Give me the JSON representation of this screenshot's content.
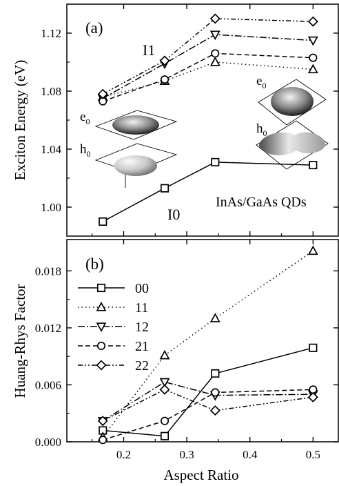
{
  "chart_data": [
    {
      "panel_label": "(a)",
      "type": "line",
      "ylabel": "Exciton Energy",
      "ylabel_unit": "(eV)",
      "ylim": [
        0.98,
        1.14
      ],
      "yticks": [
        "1.00",
        "1.04",
        "1.08",
        "1.12"
      ],
      "xlim": [
        0.11,
        0.54
      ],
      "annotations": {
        "group_upper": "I1",
        "group_lower": "I0",
        "material": "InAs/GaAs QDs",
        "e_label_left": "e",
        "e_sub_left": "0",
        "h_label_left": "h",
        "h_sub_left": "0",
        "e_label_right": "e",
        "e_sub_right": "0",
        "h_label_right": "h",
        "h_sub_right": "0"
      },
      "x": [
        0.167,
        0.265,
        0.345,
        0.5
      ],
      "series": [
        {
          "key": "00",
          "marker": "square",
          "dash": "",
          "values": [
            0.99,
            1.013,
            1.031,
            1.029
          ]
        },
        {
          "key": "11",
          "marker": "triangle-up",
          "dash": "1.5,4",
          "values": [
            1.076,
            1.087,
            1.1,
            1.095
          ]
        },
        {
          "key": "12",
          "marker": "triangle-down",
          "dash": "10,3,2,3",
          "values": [
            1.075,
            1.099,
            1.119,
            1.115
          ]
        },
        {
          "key": "21",
          "marker": "circle",
          "dash": "7,4",
          "values": [
            1.073,
            1.088,
            1.106,
            1.103
          ]
        },
        {
          "key": "22",
          "marker": "diamond",
          "dash": "7,3,2,3,2,3",
          "values": [
            1.078,
            1.101,
            1.13,
            1.128
          ]
        }
      ]
    },
    {
      "panel_label": "(b)",
      "type": "line",
      "xlabel": "Aspect Ratio",
      "ylabel": "Huang-Rhys Factor",
      "ylim": [
        0.0,
        0.0213
      ],
      "yticks": [
        "0.000",
        "0.006",
        "0.012",
        "0.018"
      ],
      "xlim": [
        0.11,
        0.54
      ],
      "xticks": [
        "0.2",
        "0.3",
        "0.4",
        "0.5"
      ],
      "x": [
        0.167,
        0.265,
        0.345,
        0.5
      ],
      "legend": [
        "00",
        "11",
        "12",
        "21",
        "22"
      ],
      "legend_position": "upper-left",
      "series": [
        {
          "name": "00",
          "marker": "square",
          "dash": "",
          "values": [
            0.0012,
            0.0006,
            0.0072,
            0.0099
          ]
        },
        {
          "name": "11",
          "marker": "triangle-up",
          "dash": "1.5,4",
          "values": [
            0.0005,
            0.0091,
            0.013,
            0.0201
          ]
        },
        {
          "name": "12",
          "marker": "triangle-down",
          "dash": "10,3,2,3",
          "values": [
            0.0022,
            0.0063,
            0.0049,
            0.005
          ]
        },
        {
          "name": "21",
          "marker": "circle",
          "dash": "7,4",
          "values": [
            0.0002,
            0.0022,
            0.0052,
            0.0055
          ]
        },
        {
          "name": "22",
          "marker": "diamond",
          "dash": "7,3,2,3,2,3",
          "values": [
            0.0022,
            0.0055,
            0.0033,
            0.0047
          ]
        }
      ]
    }
  ]
}
